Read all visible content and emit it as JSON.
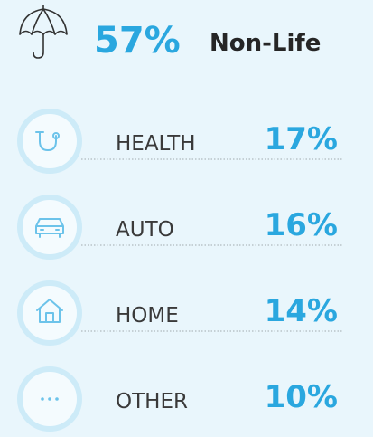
{
  "header": {
    "value": "57%",
    "label": "Non-Life"
  },
  "items": [
    {
      "label": "HEALTH",
      "value": "17%"
    },
    {
      "label": "AUTO",
      "value": "16%"
    },
    {
      "label": "HOME",
      "value": "14%"
    },
    {
      "label": "OTHER",
      "value": "10%"
    }
  ]
}
